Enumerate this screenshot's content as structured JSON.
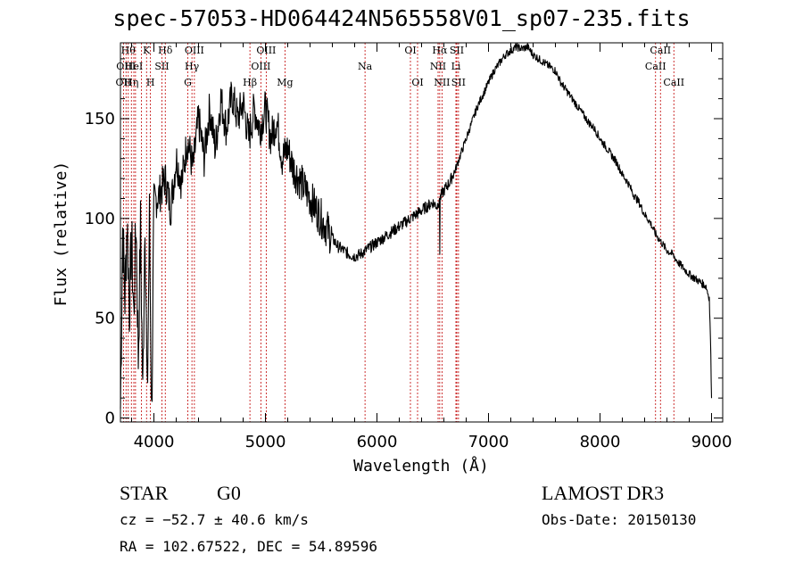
{
  "header": {
    "title": "spec-57053-HD064424N565558V01_sp07-235.fits"
  },
  "footer": {
    "object_class": "STAR",
    "subclass": "G0",
    "survey": "LAMOST DR3",
    "cz": "cz = −52.7 ± 40.6 km/s",
    "obs_date": "Obs-Date: 20150130",
    "coords": "RA = 102.67522, DEC =  54.89596"
  },
  "chart_data": {
    "type": "line",
    "title": "spec-57053-HD064424N565558V01_sp07-235.fits",
    "xlabel": "Wavelength (Å)",
    "ylabel": "Flux (relative)",
    "xlim": [
      3700,
      9100
    ],
    "ylim": [
      -2,
      188
    ],
    "xticks": [
      4000,
      5000,
      6000,
      7000,
      8000,
      9000
    ],
    "yticks": [
      0,
      50,
      100,
      150
    ],
    "grid": false,
    "line_color": "#000000",
    "marker_color": "#c00000",
    "series": [
      {
        "x": [
          3700,
          3720,
          3740,
          3760,
          3780,
          3800,
          3820,
          3840,
          3860,
          3880,
          3900,
          3920,
          3940,
          3960,
          3980,
          4000,
          4050,
          4100,
          4150,
          4200,
          4250,
          4300,
          4350,
          4400,
          4450,
          4500,
          4550,
          4600,
          4650,
          4700,
          4750,
          4800,
          4850,
          4900,
          4950,
          5000,
          5050,
          5100,
          5150,
          5200,
          5250,
          5300,
          5350,
          5400,
          5450,
          5500,
          5550,
          5600,
          5650,
          5700,
          5750,
          5800,
          5850,
          5900,
          5950,
          6000,
          6050,
          6100,
          6150,
          6200,
          6250,
          6300,
          6350,
          6400,
          6450,
          6500,
          6540,
          6560,
          6563,
          6566,
          6580,
          6600,
          6650,
          6700,
          6750,
          6800,
          6850,
          6900,
          6950,
          7000,
          7050,
          7100,
          7150,
          7200,
          7250,
          7300,
          7350,
          7400,
          7450,
          7500,
          7550,
          7600,
          7650,
          7700,
          7750,
          7800,
          7850,
          7900,
          7950,
          8000,
          8050,
          8100,
          8150,
          8200,
          8250,
          8300,
          8350,
          8400,
          8450,
          8500,
          8550,
          8600,
          8650,
          8700,
          8750,
          8800,
          8850,
          8900,
          8950,
          8980,
          8990,
          9000
        ],
        "y": [
          5,
          95,
          60,
          100,
          55,
          90,
          50,
          100,
          30,
          95,
          10,
          105,
          5,
          100,
          0,
          108,
          112,
          120,
          105,
          130,
          118,
          140,
          125,
          150,
          130,
          155,
          135,
          160,
          145,
          162,
          150,
          158,
          140,
          155,
          145,
          155,
          140,
          150,
          130,
          135,
          125,
          120,
          115,
          110,
          105,
          100,
          95,
          90,
          86,
          84,
          82,
          81,
          82,
          84,
          86,
          88,
          90,
          92,
          94,
          96,
          98,
          100,
          102,
          104,
          106,
          108,
          106,
          110,
          82,
          110,
          112,
          114,
          118,
          124,
          132,
          140,
          148,
          156,
          162,
          168,
          174,
          178,
          182,
          184,
          186,
          185,
          186,
          182,
          180,
          178,
          176,
          174,
          168,
          164,
          160,
          156,
          152,
          148,
          145,
          140,
          136,
          132,
          128,
          122,
          118,
          112,
          108,
          102,
          98,
          92,
          88,
          84,
          82,
          78,
          75,
          72,
          70,
          68,
          66,
          60,
          40,
          10
        ]
      }
    ],
    "line_markers": [
      {
        "wave": 3727,
        "label": "OII",
        "row": 2
      },
      {
        "wave": 3750,
        "label": "OIII",
        "row": 1
      },
      {
        "wave": 3770,
        "label": "Hθ",
        "row": 0
      },
      {
        "wave": 3798,
        "label": "Hη",
        "row": 2
      },
      {
        "wave": 3820,
        "label": "HeI",
        "row": 1
      },
      {
        "wave": 3835,
        "label": "",
        "row": 0
      },
      {
        "wave": 3889,
        "label": "",
        "row": 0
      },
      {
        "wave": 3934,
        "label": "K",
        "row": 0
      },
      {
        "wave": 3969,
        "label": "H",
        "row": 2
      },
      {
        "wave": 4072,
        "label": "SII",
        "row": 1
      },
      {
        "wave": 4102,
        "label": "Hδ",
        "row": 0
      },
      {
        "wave": 4304,
        "label": "G",
        "row": 2
      },
      {
        "wave": 4341,
        "label": "Hγ",
        "row": 1
      },
      {
        "wave": 4363,
        "label": "OIII",
        "row": 0
      },
      {
        "wave": 4861,
        "label": "Hβ",
        "row": 2
      },
      {
        "wave": 4959,
        "label": "OIII",
        "row": 1
      },
      {
        "wave": 5007,
        "label": "OIII",
        "row": 0
      },
      {
        "wave": 5175,
        "label": "Mg",
        "row": 2
      },
      {
        "wave": 5893,
        "label": "Na",
        "row": 1
      },
      {
        "wave": 6300,
        "label": "OI",
        "row": 0
      },
      {
        "wave": 6364,
        "label": "OI",
        "row": 2
      },
      {
        "wave": 6548,
        "label": "NII",
        "row": 1
      },
      {
        "wave": 6563,
        "label": "Hα",
        "row": 0
      },
      {
        "wave": 6583,
        "label": "NII",
        "row": 2
      },
      {
        "wave": 6708,
        "label": "Li",
        "row": 1
      },
      {
        "wave": 6716,
        "label": "SII",
        "row": 0
      },
      {
        "wave": 6731,
        "label": "SII",
        "row": 2
      },
      {
        "wave": 8498,
        "label": "CaII",
        "row": 1
      },
      {
        "wave": 8542,
        "label": "CaII",
        "row": 0
      },
      {
        "wave": 8662,
        "label": "CaII",
        "row": 2
      }
    ]
  }
}
